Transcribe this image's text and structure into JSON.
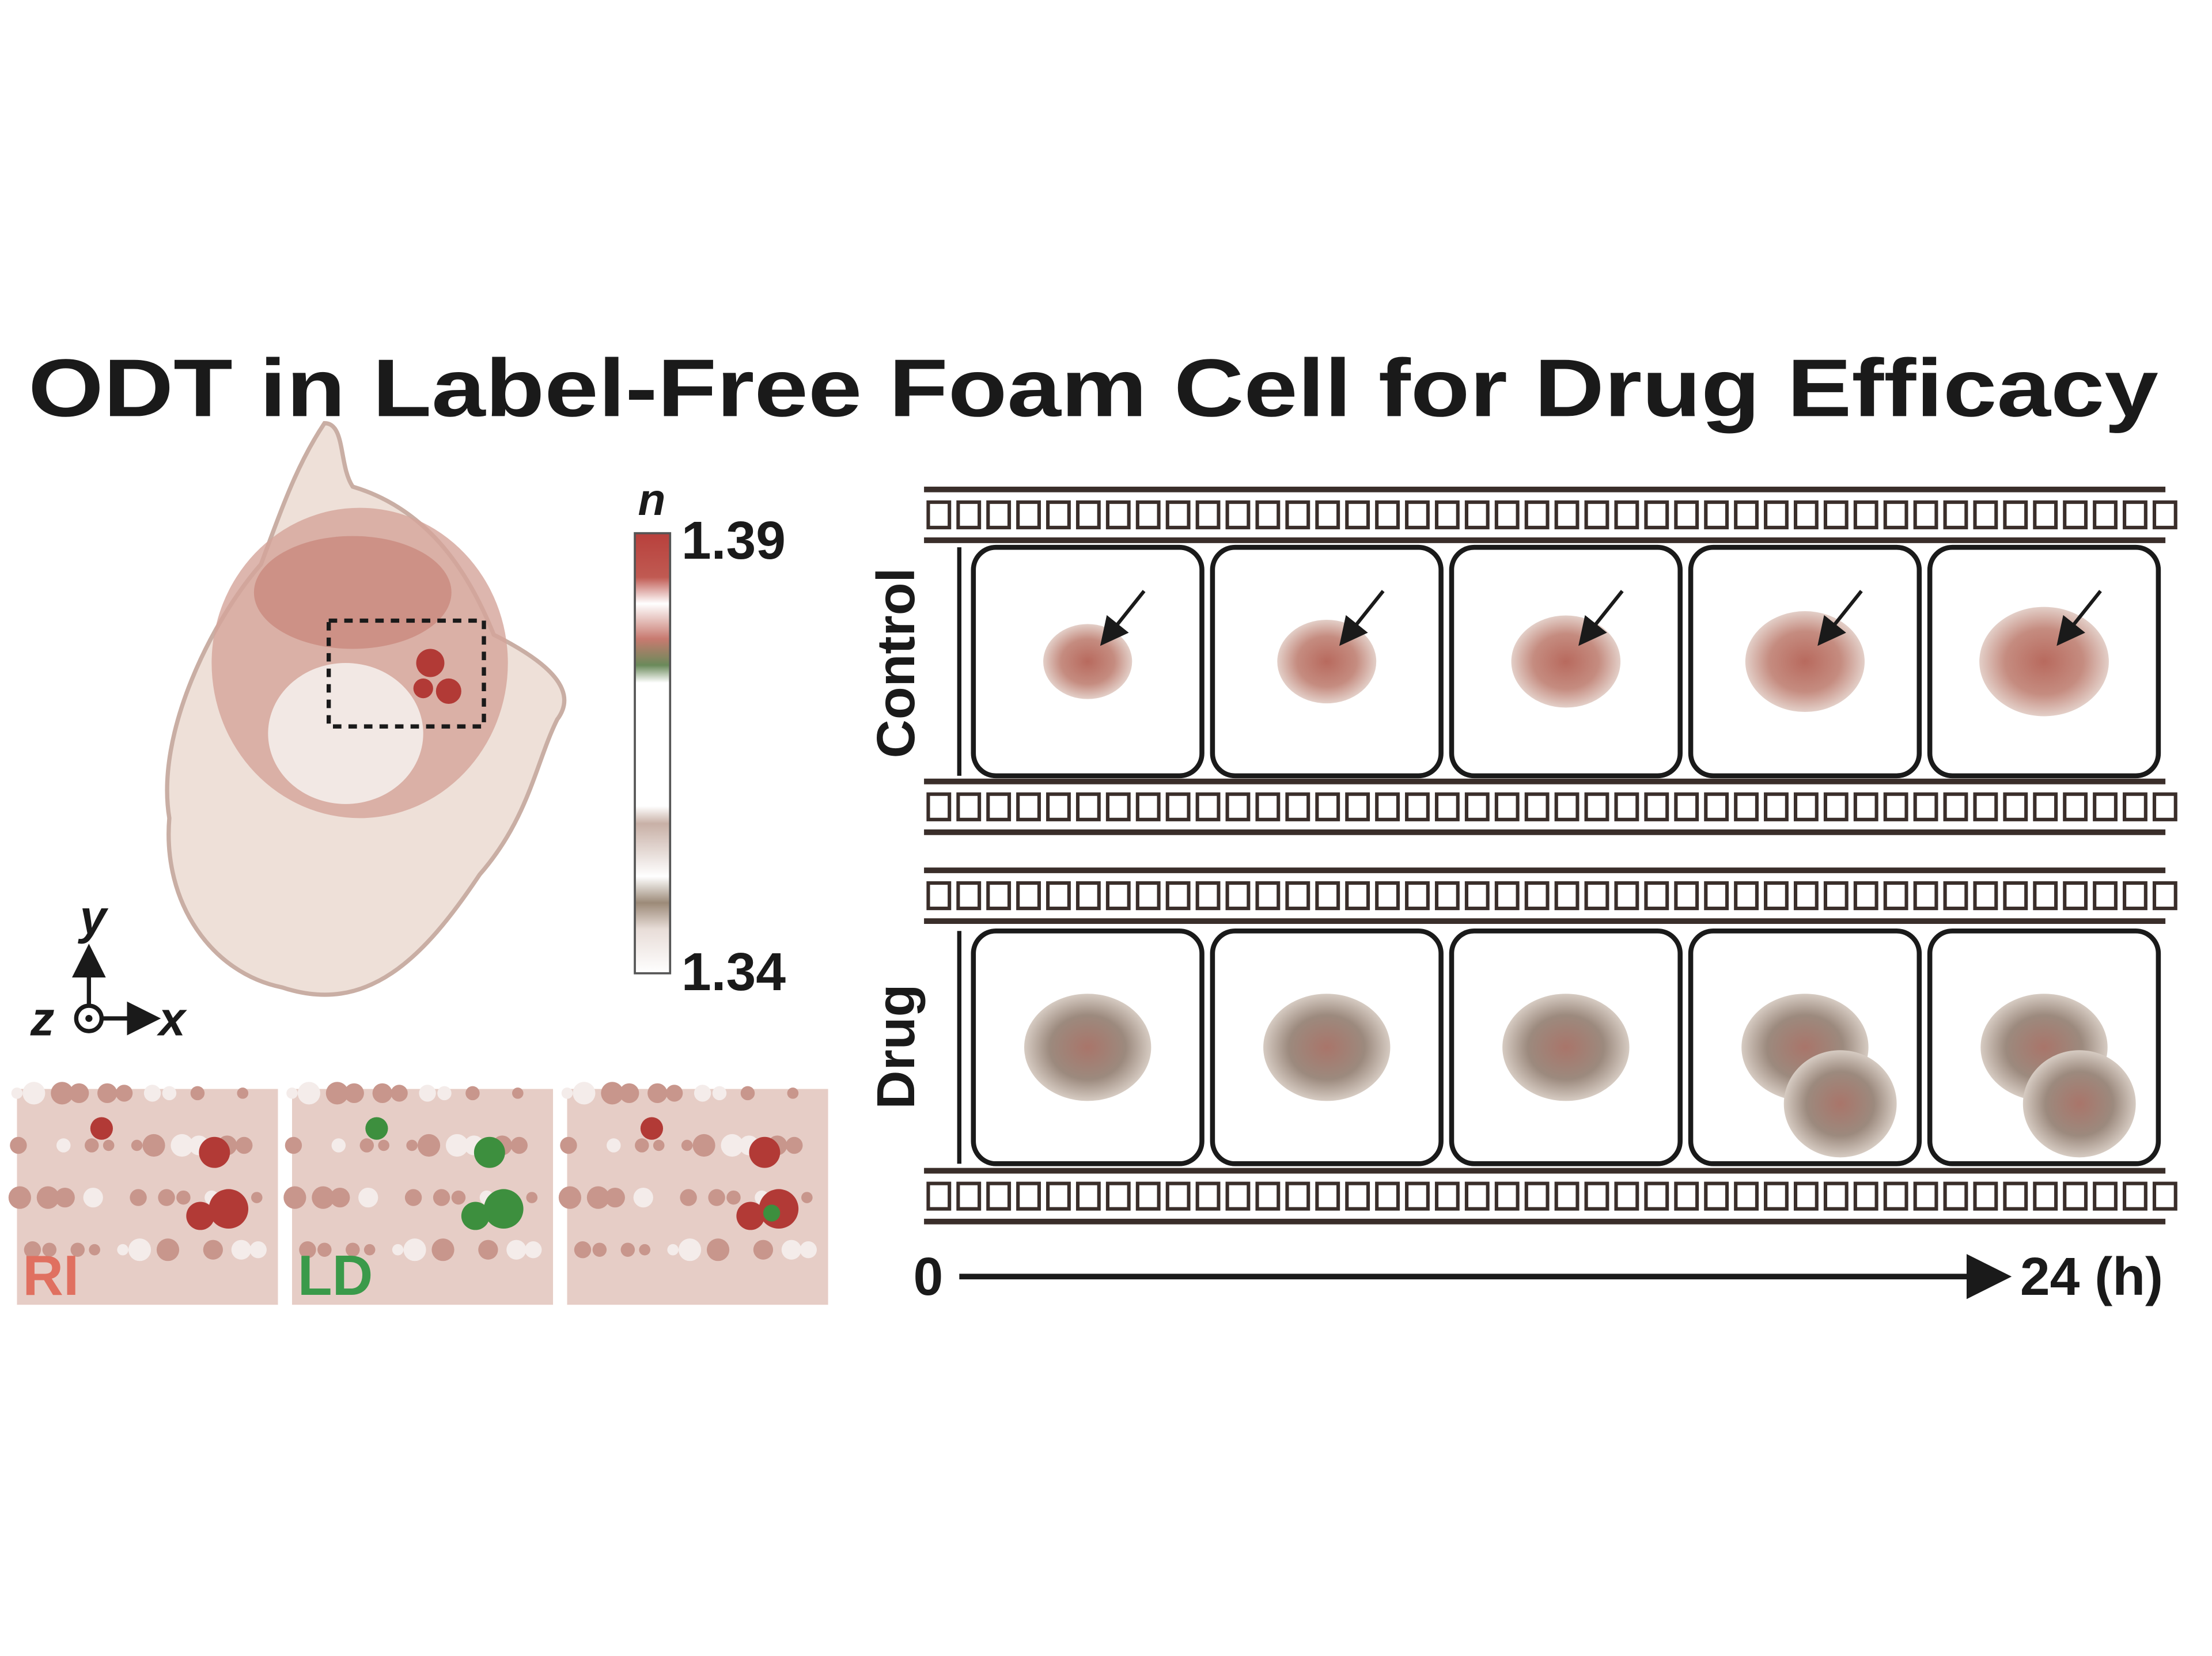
{
  "title": "ODT in Label-Free Foam Cell for Drug Efficacy",
  "axes_indicator": {
    "y": "y",
    "z": "z",
    "x": "x"
  },
  "colorbar": {
    "symbol": "n",
    "max": 1.39,
    "min": 1.34
  },
  "insets": [
    {
      "label": "RI"
    },
    {
      "label": "LD"
    }
  ],
  "filmstrips": [
    {
      "label": "Control"
    },
    {
      "label": "Drug"
    }
  ],
  "time_axis": {
    "start": 0,
    "end": "24 (h)"
  }
}
